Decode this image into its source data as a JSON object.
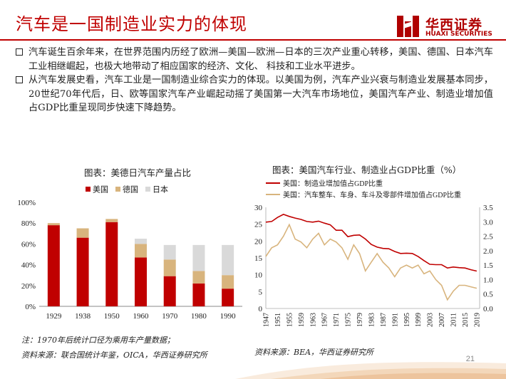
{
  "title": "汽车是一国制造业实力的体现",
  "logo": {
    "cn": "华西证券",
    "en": "HUAXI SECURITIES"
  },
  "bullets": [
    "汽车诞生百余年来，在世界范围内历经了欧洲—美国—欧洲—日本的三次产业重心转移，美国、德国、日本汽车工业相继崛起，也极大地带动了相应国家的经济、文化、 科技和工业水平进步。",
    "从汽车发展史看，汽车工业是一国制造业综合实力的体现。以美国为例，汽车产业兴衰与制造业发展基本同步，20世纪70年代后，日、欧等国家汽车产业崛起动摇了美国第一大汽车市场地位，美国汽车产业、制造业增加值占GDP比重呈现同步快速下降趋势。"
  ],
  "chart_data": [
    {
      "type": "bar",
      "stacked": true,
      "title": "图表：美德日汽车产量占比",
      "categories": [
        "1929",
        "1938",
        "1950",
        "1960",
        "1970",
        "1980",
        "1990"
      ],
      "series": [
        {
          "name": "美国",
          "color": "#c00000",
          "values": [
            78,
            66,
            81,
            47,
            29,
            22,
            17
          ]
        },
        {
          "name": "德国",
          "color": "#d8b47d",
          "values": [
            2,
            9,
            3,
            13,
            16,
            12,
            13
          ]
        },
        {
          "name": "日本",
          "color": "#d9d9d9",
          "values": [
            0,
            0,
            0,
            5,
            14,
            25,
            29
          ]
        }
      ],
      "yticks": [
        "0%",
        "20%",
        "40%",
        "60%",
        "80%",
        "100%"
      ],
      "ylim": [
        0,
        100
      ],
      "legend": "top"
    },
    {
      "type": "line",
      "title": "图表：美国汽车行业、制造业占GDP比重（%）",
      "x_ticks": [
        "1947",
        "1951",
        "1955",
        "1959",
        "1963",
        "1967",
        "1971",
        "1975",
        "1979",
        "1983",
        "1987",
        "1991",
        "1995",
        "1999",
        "2003",
        "2007",
        "2011",
        "2015",
        "2019"
      ],
      "y_left_ticks": [
        "0",
        "5",
        "10",
        "15",
        "20",
        "25",
        "30"
      ],
      "y_right_ticks": [
        "0.0",
        "0.5",
        "1.0",
        "1.5",
        "2.0",
        "2.5",
        "3.0",
        "3.5"
      ],
      "ylim_left": [
        0,
        30
      ],
      "ylim_right": [
        0,
        3.5
      ],
      "series": [
        {
          "name": "美国：制造业增加值占GDP比重",
          "axis": "left",
          "color": "#c00000",
          "x": [
            1947,
            1949,
            1951,
            1953,
            1955,
            1957,
            1959,
            1961,
            1963,
            1965,
            1967,
            1969,
            1971,
            1973,
            1975,
            1977,
            1979,
            1981,
            1983,
            1985,
            1987,
            1989,
            1991,
            1993,
            1995,
            1997,
            1999,
            2001,
            2003,
            2005,
            2007,
            2009,
            2011,
            2013,
            2015,
            2017,
            2019
          ],
          "values": [
            25.6,
            25.8,
            27.0,
            27.9,
            27.3,
            26.8,
            26.4,
            25.8,
            25.6,
            25.9,
            25.3,
            24.8,
            23.2,
            23.2,
            21.3,
            21.7,
            21.8,
            20.6,
            19.0,
            18.2,
            17.8,
            17.7,
            16.9,
            16.3,
            16.4,
            16.3,
            15.4,
            14.2,
            13.1,
            13.0,
            13.0,
            12.0,
            12.3,
            12.1,
            12.0,
            11.5,
            11.1
          ]
        },
        {
          "name": "美国：汽车整车、车身、车斗及零部件增加值占GDP比重",
          "axis": "right",
          "color": "#d8b47d",
          "x": [
            1947,
            1949,
            1951,
            1953,
            1955,
            1957,
            1959,
            1961,
            1963,
            1965,
            1967,
            1969,
            1971,
            1973,
            1975,
            1977,
            1979,
            1981,
            1983,
            1985,
            1987,
            1989,
            1991,
            1993,
            1995,
            1997,
            1999,
            2001,
            2003,
            2005,
            2007,
            2009,
            2011,
            2013,
            2015,
            2017,
            2019
          ],
          "values": [
            1.8,
            2.1,
            2.2,
            2.5,
            2.9,
            2.4,
            2.3,
            2.1,
            2.4,
            2.6,
            2.2,
            2.4,
            2.3,
            2.1,
            1.7,
            2.2,
            1.9,
            1.3,
            1.6,
            1.9,
            1.6,
            1.4,
            1.1,
            1.4,
            1.5,
            1.4,
            1.5,
            1.2,
            1.3,
            1.0,
            0.8,
            0.3,
            0.6,
            0.8,
            0.8,
            0.75,
            0.7
          ]
        }
      ],
      "legend": "top"
    }
  ],
  "notes": {
    "left_note": "注：1970年后统计口径为乘用车产量数据；",
    "left_source": "资料来源：联合国统计年鉴，OICA，华西证券研究所",
    "right_source": "资料来源：BEA，华西证券研究所"
  },
  "page_number": "21"
}
